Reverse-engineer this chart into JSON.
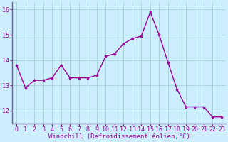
{
  "x": [
    0,
    1,
    2,
    3,
    4,
    5,
    6,
    7,
    8,
    9,
    10,
    11,
    12,
    13,
    14,
    15,
    16,
    17,
    18,
    19,
    20,
    21,
    22,
    23
  ],
  "y": [
    13.8,
    12.9,
    13.2,
    13.2,
    13.3,
    13.8,
    13.3,
    13.3,
    13.3,
    13.4,
    14.15,
    14.25,
    14.65,
    14.85,
    14.95,
    15.9,
    15.0,
    13.9,
    12.85,
    12.15,
    12.15,
    12.15,
    11.75,
    11.75
  ],
  "line_color": "#990099",
  "marker": "*",
  "marker_size": 3,
  "bg_color": "#cceeff",
  "grid_color": "#99cccc",
  "xlabel": "Windchill (Refroidissement éolien,°C)",
  "xlabel_color": "#990099",
  "xlabel_fontsize": 6.5,
  "tick_color": "#990099",
  "tick_fontsize": 6.0,
  "ylim": [
    11.5,
    16.3
  ],
  "yticks": [
    12,
    13,
    14,
    15,
    16
  ],
  "xlim": [
    -0.5,
    23.5
  ],
  "xticks": [
    0,
    1,
    2,
    3,
    4,
    5,
    6,
    7,
    8,
    9,
    10,
    11,
    12,
    13,
    14,
    15,
    16,
    17,
    18,
    19,
    20,
    21,
    22,
    23
  ],
  "spine_color": "#666688",
  "linewidth": 1.0
}
